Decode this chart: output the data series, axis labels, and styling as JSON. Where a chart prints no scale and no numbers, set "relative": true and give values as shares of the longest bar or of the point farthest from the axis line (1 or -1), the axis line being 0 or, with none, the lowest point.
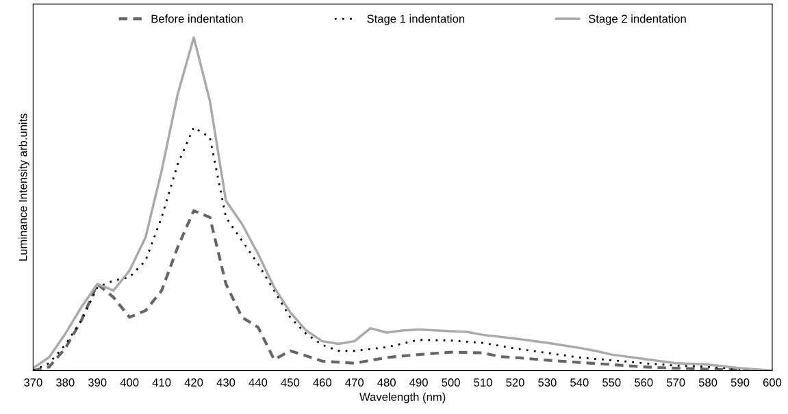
{
  "chart_data": {
    "type": "line",
    "relative": true,
    "xlabel": "Wavelength (nm)",
    "ylabel": "Luminance Intensity arb.units",
    "xlim": [
      370,
      600
    ],
    "xticks": [
      370,
      380,
      390,
      400,
      410,
      420,
      430,
      440,
      450,
      460,
      470,
      480,
      490,
      500,
      510,
      520,
      530,
      540,
      550,
      560,
      570,
      580,
      590,
      600
    ],
    "grid": false,
    "legend": "top",
    "marker": "none",
    "tick_labels": "x",
    "series": [
      {
        "name": "Before indentation",
        "color": "#666666",
        "line_style": "dashed",
        "x": [
          370,
          375,
          380,
          385,
          390,
          395,
          400,
          405,
          410,
          415,
          420,
          425,
          430,
          435,
          440,
          445,
          450,
          455,
          460,
          470,
          480,
          490,
          500,
          510,
          515,
          520,
          530,
          540,
          550,
          560,
          570,
          580,
          600
        ],
        "values": [
          0,
          0.011,
          0.066,
          0.15,
          0.26,
          0.22,
          0.16,
          0.18,
          0.24,
          0.37,
          0.48,
          0.46,
          0.26,
          0.16,
          0.13,
          0.033,
          0.059,
          0.044,
          0.028,
          0.022,
          0.039,
          0.048,
          0.055,
          0.053,
          0.042,
          0.039,
          0.031,
          0.024,
          0.018,
          0.011,
          0.007,
          0.004,
          0
        ]
      },
      {
        "name": "Stage 1 indentation",
        "color": "#000000",
        "line_style": "dotted",
        "x": [
          370,
          375,
          380,
          385,
          390,
          395,
          400,
          405,
          410,
          415,
          420,
          425,
          430,
          435,
          440,
          445,
          450,
          455,
          460,
          465,
          470,
          480,
          490,
          500,
          510,
          520,
          530,
          540,
          550,
          560,
          570,
          580,
          590,
          600
        ],
        "values": [
          0,
          0.022,
          0.077,
          0.15,
          0.25,
          0.27,
          0.28,
          0.33,
          0.46,
          0.62,
          0.73,
          0.7,
          0.46,
          0.39,
          0.32,
          0.24,
          0.16,
          0.11,
          0.077,
          0.059,
          0.059,
          0.07,
          0.092,
          0.09,
          0.083,
          0.066,
          0.053,
          0.039,
          0.031,
          0.022,
          0.015,
          0.011,
          0.004,
          0
        ]
      },
      {
        "name": "Stage 2 indentation",
        "color": "#aaaaaa",
        "line_style": "solid",
        "x": [
          370,
          375,
          380,
          385,
          390,
          395,
          400,
          405,
          410,
          415,
          420,
          425,
          430,
          435,
          440,
          445,
          450,
          455,
          460,
          465,
          470,
          475,
          480,
          485,
          490,
          500,
          505,
          510,
          520,
          530,
          540,
          545,
          550,
          560,
          570,
          580,
          590,
          600
        ],
        "values": [
          0.007,
          0.04,
          0.11,
          0.19,
          0.26,
          0.24,
          0.3,
          0.4,
          0.6,
          0.83,
          1.0,
          0.81,
          0.51,
          0.44,
          0.35,
          0.25,
          0.175,
          0.12,
          0.088,
          0.08,
          0.088,
          0.127,
          0.114,
          0.12,
          0.123,
          0.118,
          0.116,
          0.107,
          0.096,
          0.083,
          0.068,
          0.059,
          0.048,
          0.035,
          0.022,
          0.018,
          0.007,
          0
        ]
      }
    ]
  }
}
